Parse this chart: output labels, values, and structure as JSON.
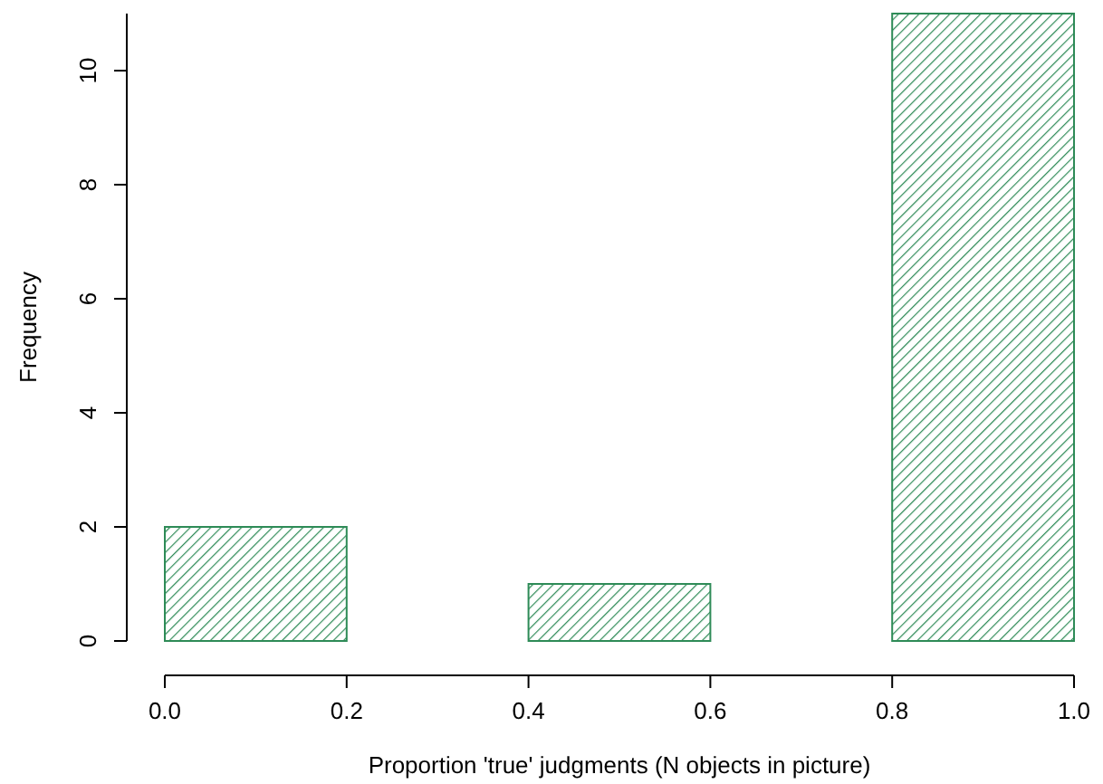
{
  "chart_data": {
    "type": "histogram",
    "xlabel": "Proportion 'true' judgments (N objects in picture)",
    "ylabel": "Frequency",
    "bins": [
      0,
      0.2,
      0.4,
      0.6,
      0.8,
      1.0
    ],
    "values": [
      2,
      0,
      1,
      0,
      11
    ],
    "color": "#2e8b57",
    "xlim": [
      0,
      1
    ],
    "xticks": [
      {
        "value": 0,
        "label": "0.0"
      },
      {
        "value": 0.2,
        "label": "0.2"
      },
      {
        "value": 0.4,
        "label": "0.4"
      },
      {
        "value": 0.6,
        "label": "0.6"
      },
      {
        "value": 0.8,
        "label": "0.8"
      },
      {
        "value": 1,
        "label": "1.0"
      }
    ],
    "ylim": [
      0,
      11
    ],
    "yticks": [
      0,
      2,
      4,
      6,
      8,
      10
    ],
    "grid": false
  }
}
